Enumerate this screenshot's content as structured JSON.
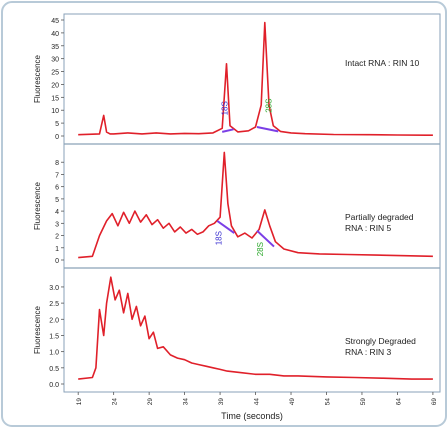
{
  "chart_data": [
    {
      "type": "line",
      "ylabel": "Fluorescence",
      "annotation": [
        "Intact RNA : RIN 10"
      ],
      "ylim": [
        0,
        45
      ],
      "yticks": [
        0,
        5,
        10,
        15,
        20,
        25,
        30,
        35,
        40,
        45
      ],
      "peak_labels": [
        {
          "text": "18S",
          "x": 39.6
        },
        {
          "text": "28S",
          "x": 45.8
        }
      ],
      "series": [
        {
          "x": [
            19,
            22,
            22.6,
            23,
            23.5,
            24,
            26,
            28,
            30,
            32,
            34,
            36,
            38,
            39.3,
            39.9,
            40.4,
            41.5,
            43,
            44,
            44.8,
            45.3,
            45.9,
            46.5,
            47.5,
            49,
            51,
            55,
            60,
            64,
            68,
            69
          ],
          "y": [
            0.5,
            0.8,
            8,
            1.5,
            0.8,
            0.8,
            1.2,
            0.8,
            1.2,
            0.8,
            1.0,
            0.9,
            1.2,
            3.0,
            28,
            4,
            1.6,
            2.0,
            3.5,
            12,
            44,
            12,
            4,
            1.8,
            1.2,
            0.9,
            0.6,
            0.5,
            0.4,
            0.3,
            0.3
          ]
        }
      ]
    },
    {
      "type": "line",
      "ylabel": "Fluorescence",
      "annotation": [
        "Partially degraded",
        "RNA : RIN 5"
      ],
      "ylim": [
        0,
        9
      ],
      "yticks": [
        0,
        1,
        2,
        3,
        4,
        5,
        6,
        7,
        8
      ],
      "peak_labels": [
        {
          "text": "18S",
          "x": 38.8
        },
        {
          "text": "28S",
          "x": 44.6
        }
      ],
      "series": [
        {
          "x": [
            19,
            21,
            22,
            23,
            23.8,
            24.6,
            25.4,
            26.2,
            27,
            27.8,
            28.6,
            29.4,
            30.2,
            31,
            31.8,
            32.6,
            33.4,
            34.2,
            35,
            35.8,
            36.6,
            37.4,
            38.2,
            39,
            39.6,
            40.1,
            40.6,
            41.5,
            42.5,
            43.5,
            44.5,
            45.3,
            46,
            46.8,
            48,
            50,
            53,
            57,
            61,
            65,
            69
          ],
          "y": [
            0.2,
            0.3,
            2.0,
            3.2,
            3.8,
            2.8,
            3.9,
            3.0,
            4.0,
            3.1,
            3.7,
            2.9,
            3.3,
            2.6,
            3.0,
            2.3,
            2.7,
            2.2,
            2.5,
            2.1,
            2.3,
            2.8,
            3.0,
            3.5,
            8.8,
            4.6,
            2.8,
            1.9,
            2.2,
            1.8,
            2.5,
            4.1,
            2.8,
            1.5,
            0.9,
            0.6,
            0.5,
            0.45,
            0.4,
            0.35,
            0.3
          ]
        }
      ]
    },
    {
      "type": "line",
      "ylabel": "Fluorescence",
      "annotation": [
        "Strongly Degraded",
        "RNA : RIN 3"
      ],
      "ylim": [
        0,
        3.4
      ],
      "yticks": [
        0.0,
        0.5,
        1.0,
        1.5,
        2.0,
        2.5,
        3.0
      ],
      "peak_labels": [],
      "series": [
        {
          "x": [
            19,
            21,
            21.5,
            22,
            22.6,
            23,
            23.6,
            24.2,
            24.8,
            25.4,
            26,
            26.6,
            27.2,
            27.8,
            28.4,
            29,
            29.6,
            30.2,
            31,
            32,
            33,
            34,
            35,
            36,
            37,
            38,
            39,
            40,
            42,
            44,
            46,
            48,
            50,
            54,
            58,
            62,
            66,
            69
          ],
          "y": [
            0.15,
            0.2,
            0.5,
            2.3,
            1.5,
            2.5,
            3.3,
            2.6,
            2.9,
            2.2,
            2.8,
            2.0,
            2.4,
            1.8,
            2.1,
            1.4,
            1.6,
            1.1,
            1.15,
            0.9,
            0.8,
            0.75,
            0.65,
            0.6,
            0.55,
            0.5,
            0.45,
            0.4,
            0.35,
            0.3,
            0.3,
            0.25,
            0.25,
            0.22,
            0.2,
            0.18,
            0.15,
            0.15
          ]
        }
      ]
    }
  ],
  "shared_x": {
    "label": "Time (seconds)",
    "ticks": [
      19,
      24,
      29,
      34,
      39,
      44,
      49,
      54,
      59,
      64,
      69
    ],
    "xlim": [
      17,
      70
    ]
  },
  "colors": {
    "line": "#e0202a",
    "baseline": "#7b3fe6",
    "label_18s": "#3a2fd0",
    "label_28s": "#2aa72a",
    "frame": "#8aa2b8",
    "outer_frame": "#b8cad8",
    "text": "#222222"
  }
}
